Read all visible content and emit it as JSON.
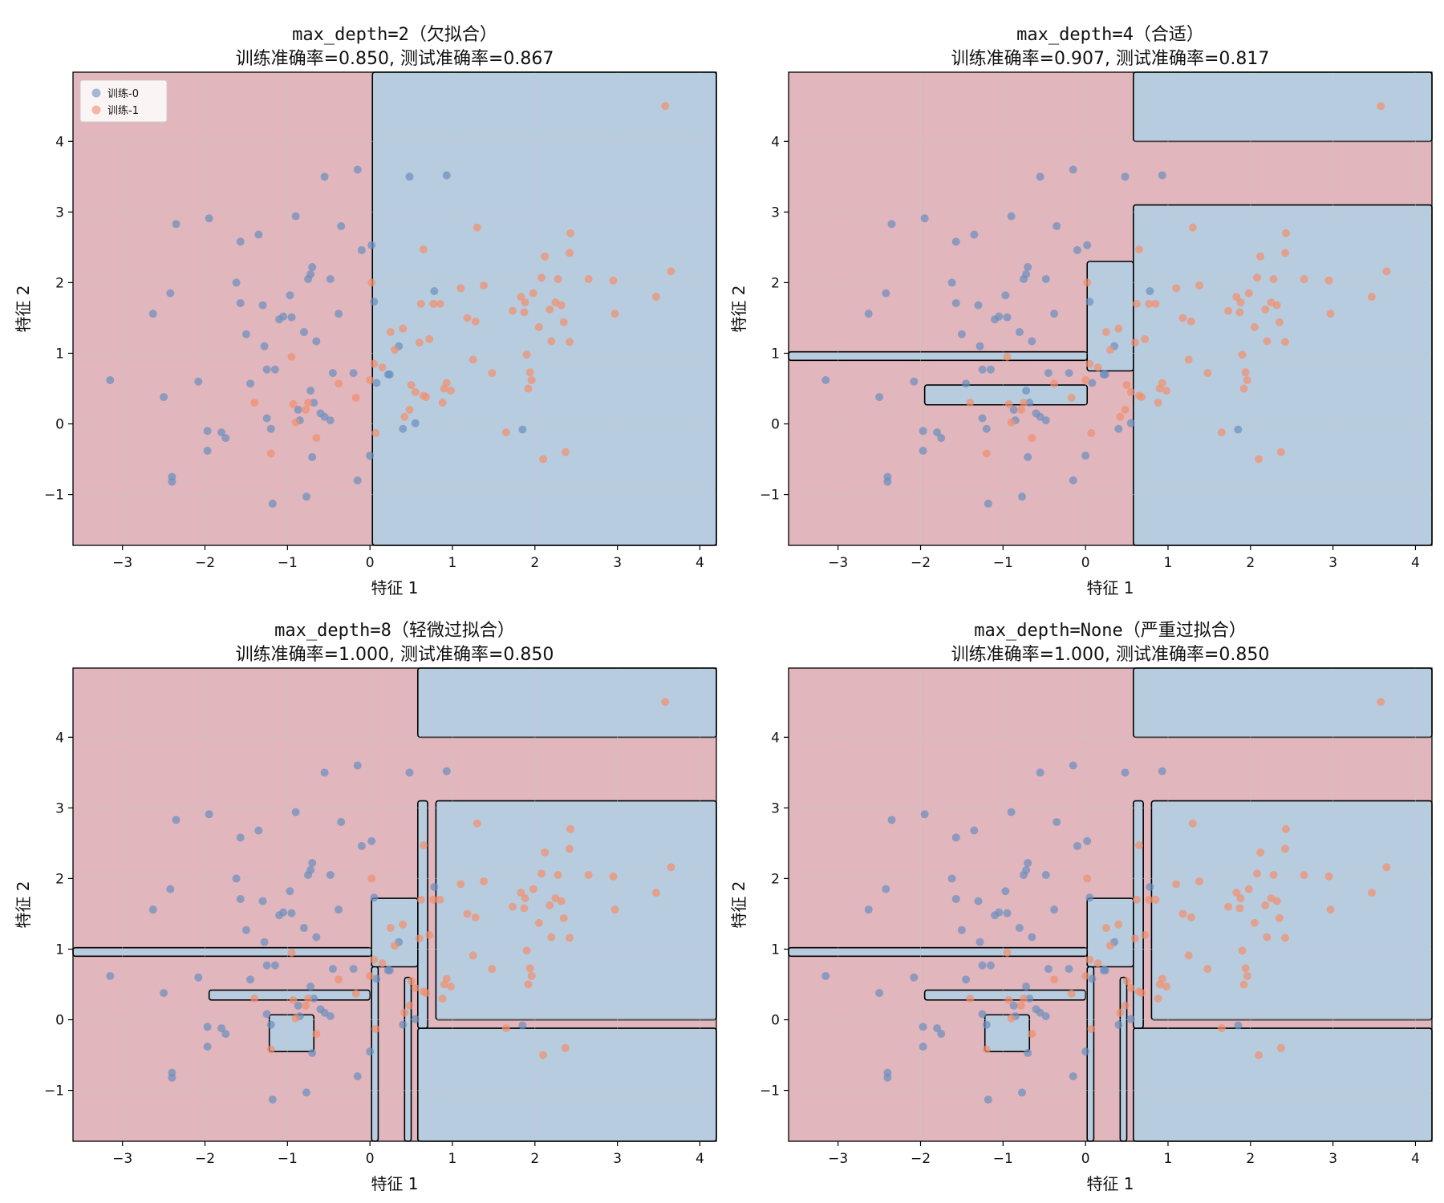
{
  "colors": {
    "class0_region": "#b8cce0",
    "class1_region": "#e1b6bd",
    "class0_point": "#6a8fbf",
    "class1_point": "#f28e6c",
    "boundary": "#000000",
    "grid": "#c8c8c8"
  },
  "legend": {
    "class0": "训练-0",
    "class1": "训练-1"
  },
  "chart_data": [
    {
      "type": "scatter",
      "title_line1": "max_depth=2（欠拟合）",
      "title_line2": "训练准确率=0.850, 测试准确率=0.867",
      "xlabel": "特征 1",
      "ylabel": "特征 2",
      "xlim": [
        -3.6,
        4.2
      ],
      "ylim": [
        -1.72,
        4.98
      ],
      "xticks": [
        -3,
        -2,
        -1,
        0,
        1,
        2,
        3,
        4
      ],
      "yticks": [
        -1,
        0,
        1,
        2,
        3,
        4
      ],
      "grid": true,
      "legend_position": "upper-left",
      "decision_regions": [
        {
          "class": 0,
          "x": [
            0.03,
            4.2
          ],
          "y": [
            -1.72,
            4.98
          ]
        }
      ]
    },
    {
      "type": "scatter",
      "title_line1": "max_depth=4（合适）",
      "title_line2": "训练准确率=0.907, 测试准确率=0.817",
      "xlabel": "特征 1",
      "ylabel": "特征 2",
      "xlim": [
        -3.6,
        4.2
      ],
      "ylim": [
        -1.72,
        4.98
      ],
      "xticks": [
        -3,
        -2,
        -1,
        0,
        1,
        2,
        3,
        4
      ],
      "yticks": [
        -1,
        0,
        1,
        2,
        3,
        4
      ],
      "grid": true,
      "decision_regions": [
        {
          "class": 0,
          "x": [
            0.58,
            4.2
          ],
          "y": [
            4.0,
            4.98
          ]
        },
        {
          "class": 0,
          "x": [
            0.58,
            4.2
          ],
          "y": [
            -1.72,
            3.1
          ]
        },
        {
          "class": 0,
          "x": [
            0.02,
            0.58
          ],
          "y": [
            0.75,
            2.3
          ]
        },
        {
          "class": 0,
          "x": [
            -3.6,
            0.02
          ],
          "y": [
            0.9,
            1.02
          ]
        },
        {
          "class": 0,
          "x": [
            -1.95,
            0.02
          ],
          "y": [
            0.27,
            0.55
          ]
        }
      ]
    },
    {
      "type": "scatter",
      "title_line1": "max_depth=8（轻微过拟合）",
      "title_line2": "训练准确率=1.000, 测试准确率=0.850",
      "xlabel": "特征 1",
      "ylabel": "特征 2",
      "xlim": [
        -3.6,
        4.2
      ],
      "ylim": [
        -1.72,
        4.98
      ],
      "xticks": [
        -3,
        -2,
        -1,
        0,
        1,
        2,
        3,
        4
      ],
      "yticks": [
        -1,
        0,
        1,
        2,
        3,
        4
      ],
      "grid": true,
      "decision_regions": [
        {
          "class": 0,
          "x": [
            0.58,
            4.2
          ],
          "y": [
            4.0,
            4.98
          ]
        },
        {
          "class": 0,
          "x": [
            0.8,
            4.2
          ],
          "y": [
            0.0,
            3.1
          ]
        },
        {
          "class": 0,
          "x": [
            0.58,
            4.2
          ],
          "y": [
            -1.72,
            -0.12
          ]
        },
        {
          "class": 0,
          "x": [
            0.58,
            0.7
          ],
          "y": [
            -0.12,
            3.1
          ]
        },
        {
          "class": 0,
          "x": [
            0.02,
            0.58
          ],
          "y": [
            0.75,
            1.72
          ]
        },
        {
          "class": 0,
          "x": [
            0.02,
            0.1
          ],
          "y": [
            -1.72,
            0.75
          ]
        },
        {
          "class": 0,
          "x": [
            0.42,
            0.5
          ],
          "y": [
            -1.72,
            0.6
          ]
        },
        {
          "class": 0,
          "x": [
            -3.6,
            0.02
          ],
          "y": [
            0.9,
            1.02
          ]
        },
        {
          "class": 0,
          "x": [
            -1.95,
            0.0
          ],
          "y": [
            0.28,
            0.42
          ]
        },
        {
          "class": 0,
          "x": [
            -1.22,
            -0.68
          ],
          "y": [
            -0.45,
            0.07
          ]
        }
      ]
    },
    {
      "type": "scatter",
      "title_line1": "max_depth=None（严重过拟合）",
      "title_line2": "训练准确率=1.000, 测试准确率=0.850",
      "xlabel": "特征 1",
      "ylabel": "特征 2",
      "xlim": [
        -3.6,
        4.2
      ],
      "ylim": [
        -1.72,
        4.98
      ],
      "xticks": [
        -3,
        -2,
        -1,
        0,
        1,
        2,
        3,
        4
      ],
      "yticks": [
        -1,
        0,
        1,
        2,
        3,
        4
      ],
      "grid": true,
      "decision_regions": [
        {
          "class": 0,
          "x": [
            0.58,
            4.2
          ],
          "y": [
            4.0,
            4.98
          ]
        },
        {
          "class": 0,
          "x": [
            0.8,
            4.2
          ],
          "y": [
            0.0,
            3.1
          ]
        },
        {
          "class": 0,
          "x": [
            0.58,
            4.2
          ],
          "y": [
            -1.72,
            -0.12
          ]
        },
        {
          "class": 0,
          "x": [
            0.58,
            0.7
          ],
          "y": [
            -0.12,
            3.1
          ]
        },
        {
          "class": 0,
          "x": [
            0.02,
            0.58
          ],
          "y": [
            0.75,
            1.72
          ]
        },
        {
          "class": 0,
          "x": [
            0.02,
            0.1
          ],
          "y": [
            -1.72,
            0.75
          ]
        },
        {
          "class": 0,
          "x": [
            0.42,
            0.5
          ],
          "y": [
            -1.72,
            0.6
          ]
        },
        {
          "class": 0,
          "x": [
            -3.6,
            0.02
          ],
          "y": [
            0.9,
            1.02
          ]
        },
        {
          "class": 0,
          "x": [
            -1.95,
            0.0
          ],
          "y": [
            0.28,
            0.42
          ]
        },
        {
          "class": 0,
          "x": [
            -1.22,
            -0.68
          ],
          "y": [
            -0.45,
            0.07
          ]
        }
      ]
    }
  ],
  "training_points": {
    "class0": [
      [
        -3.15,
        0.62
      ],
      [
        -2.63,
        1.56
      ],
      [
        -2.5,
        0.38
      ],
      [
        -2.42,
        1.85
      ],
      [
        -2.4,
        -0.75
      ],
      [
        -2.4,
        -0.82
      ],
      [
        -2.35,
        2.83
      ],
      [
        -2.08,
        0.6
      ],
      [
        -1.95,
        2.91
      ],
      [
        -1.97,
        -0.1
      ],
      [
        -1.97,
        -0.38
      ],
      [
        -1.8,
        -0.12
      ],
      [
        -1.75,
        -0.2
      ],
      [
        -1.62,
        2.0
      ],
      [
        -1.57,
        2.58
      ],
      [
        -1.57,
        1.71
      ],
      [
        -1.5,
        1.27
      ],
      [
        -1.45,
        0.57
      ],
      [
        -1.35,
        2.68
      ],
      [
        -1.3,
        1.68
      ],
      [
        -1.28,
        1.1
      ],
      [
        -1.25,
        0.77
      ],
      [
        -1.25,
        0.08
      ],
      [
        -1.2,
        -0.07
      ],
      [
        -1.18,
        -1.13
      ],
      [
        -1.15,
        0.77
      ],
      [
        -1.1,
        1.48
      ],
      [
        -1.05,
        1.52
      ],
      [
        -0.97,
        1.82
      ],
      [
        -0.95,
        1.51
      ],
      [
        -0.9,
        2.94
      ],
      [
        -0.87,
        0.2
      ],
      [
        -0.85,
        0.05
      ],
      [
        -0.8,
        1.3
      ],
      [
        -0.77,
        -1.03
      ],
      [
        -0.75,
        2.05
      ],
      [
        -0.72,
        2.12
      ],
      [
        -0.7,
        2.22
      ],
      [
        -0.72,
        0.47
      ],
      [
        -0.7,
        -0.47
      ],
      [
        -0.68,
        0.3
      ],
      [
        -0.65,
        1.17
      ],
      [
        -0.6,
        0.15
      ],
      [
        -0.55,
        0.1
      ],
      [
        -0.55,
        3.5
      ],
      [
        -0.48,
        0.05
      ],
      [
        -0.48,
        2.05
      ],
      [
        -0.45,
        0.72
      ],
      [
        -0.38,
        1.56
      ],
      [
        -0.35,
        2.8
      ],
      [
        -0.2,
        0.72
      ],
      [
        -0.15,
        3.6
      ],
      [
        -0.15,
        -0.8
      ],
      [
        -0.1,
        2.46
      ],
      [
        0.0,
        -0.45
      ],
      [
        0.02,
        2.53
      ],
      [
        0.05,
        1.73
      ],
      [
        0.08,
        0.58
      ],
      [
        0.24,
        0.7
      ],
      [
        0.22,
        0.7
      ],
      [
        0.35,
        1.1
      ],
      [
        0.4,
        -0.07
      ],
      [
        0.48,
        3.5
      ],
      [
        0.55,
        0.01
      ],
      [
        0.78,
        1.88
      ],
      [
        0.93,
        3.52
      ],
      [
        1.85,
        -0.08
      ]
    ],
    "class1": [
      [
        -1.4,
        0.3
      ],
      [
        -1.2,
        -0.42
      ],
      [
        -0.95,
        0.95
      ],
      [
        -0.93,
        0.28
      ],
      [
        -0.9,
        0.02
      ],
      [
        -0.78,
        0.2
      ],
      [
        -0.75,
        0.3
      ],
      [
        -0.65,
        -0.2
      ],
      [
        -0.38,
        0.57
      ],
      [
        -0.17,
        0.37
      ],
      [
        0.0,
        0.62
      ],
      [
        0.02,
        2.0
      ],
      [
        0.05,
        0.85
      ],
      [
        0.07,
        -0.13
      ],
      [
        0.15,
        0.8
      ],
      [
        0.25,
        1.3
      ],
      [
        0.3,
        1.05
      ],
      [
        0.4,
        1.35
      ],
      [
        0.42,
        0.1
      ],
      [
        0.48,
        0.2
      ],
      [
        0.5,
        0.55
      ],
      [
        0.55,
        0.45
      ],
      [
        0.6,
        1.15
      ],
      [
        0.62,
        1.7
      ],
      [
        0.65,
        2.47
      ],
      [
        0.65,
        0.4
      ],
      [
        0.68,
        0.38
      ],
      [
        0.72,
        1.2
      ],
      [
        0.77,
        1.7
      ],
      [
        0.85,
        1.7
      ],
      [
        0.88,
        0.3
      ],
      [
        0.9,
        0.5
      ],
      [
        0.93,
        0.58
      ],
      [
        0.98,
        0.47
      ],
      [
        1.1,
        1.92
      ],
      [
        1.18,
        1.5
      ],
      [
        1.25,
        0.91
      ],
      [
        1.28,
        1.45
      ],
      [
        1.3,
        2.78
      ],
      [
        1.38,
        1.96
      ],
      [
        1.48,
        0.72
      ],
      [
        1.65,
        -0.12
      ],
      [
        1.73,
        1.6
      ],
      [
        1.83,
        1.8
      ],
      [
        1.87,
        1.58
      ],
      [
        1.88,
        1.72
      ],
      [
        1.9,
        0.98
      ],
      [
        1.92,
        0.5
      ],
      [
        1.94,
        0.73
      ],
      [
        1.96,
        0.62
      ],
      [
        1.98,
        1.85
      ],
      [
        2.05,
        1.37
      ],
      [
        2.08,
        2.07
      ],
      [
        2.1,
        -0.5
      ],
      [
        2.12,
        2.37
      ],
      [
        2.18,
        1.62
      ],
      [
        2.2,
        1.17
      ],
      [
        2.25,
        1.72
      ],
      [
        2.28,
        2.05
      ],
      [
        2.32,
        1.68
      ],
      [
        2.35,
        1.44
      ],
      [
        2.37,
        -0.4
      ],
      [
        2.42,
        1.16
      ],
      [
        2.42,
        2.42
      ],
      [
        2.43,
        2.7
      ],
      [
        2.65,
        2.05
      ],
      [
        2.95,
        2.03
      ],
      [
        2.97,
        1.56
      ],
      [
        3.47,
        1.8
      ],
      [
        3.58,
        4.5
      ],
      [
        3.65,
        2.16
      ]
    ]
  }
}
